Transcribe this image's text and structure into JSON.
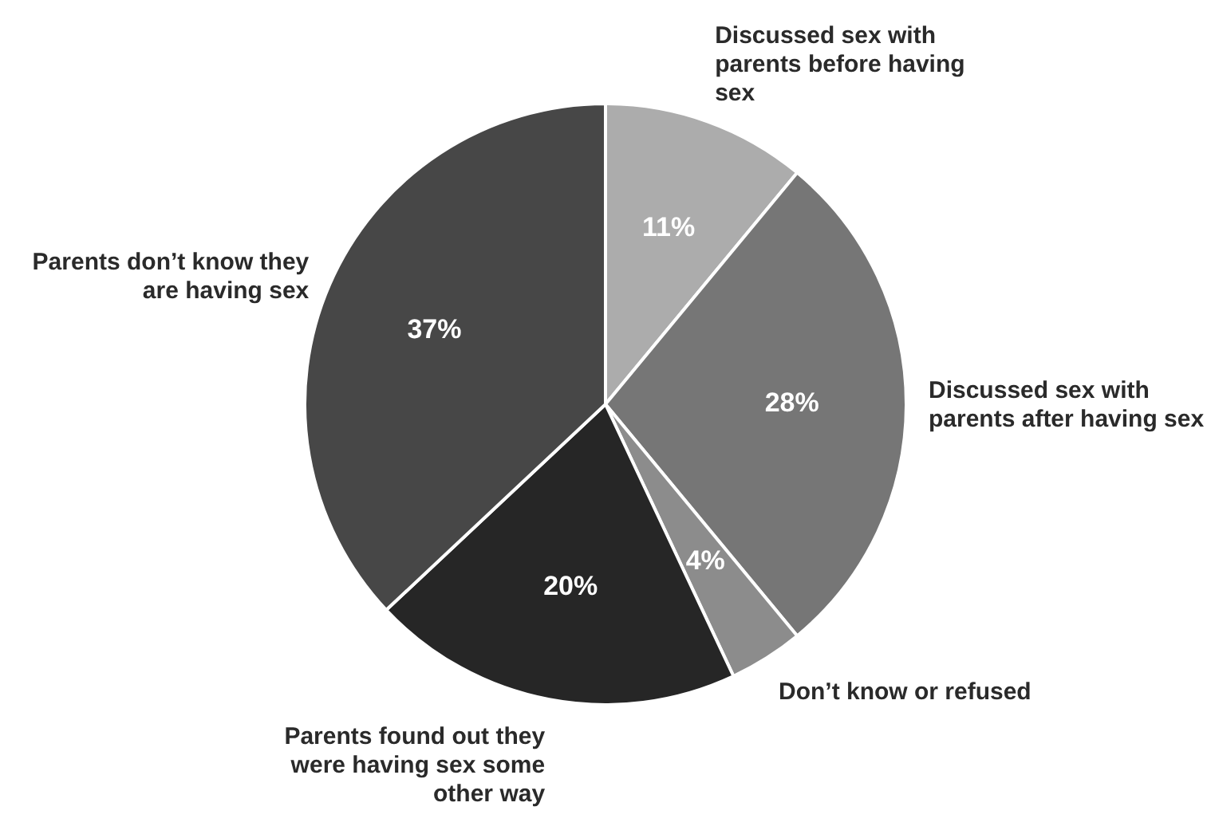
{
  "chart_data": {
    "type": "pie",
    "categories": [
      "Discussed sex with parents before having sex",
      "Discussed sex with parents after having sex",
      "Don’t know or refused",
      "Parents found out they were having sex some other way",
      "Parents don’t know they are having sex"
    ],
    "values": [
      11,
      28,
      4,
      20,
      37
    ],
    "value_labels": [
      "11%",
      "28%",
      "4%",
      "20%",
      "37%"
    ],
    "colors": [
      "#acacac",
      "#767676",
      "#8c8c8c",
      "#262626",
      "#474747"
    ],
    "legend": false
  }
}
